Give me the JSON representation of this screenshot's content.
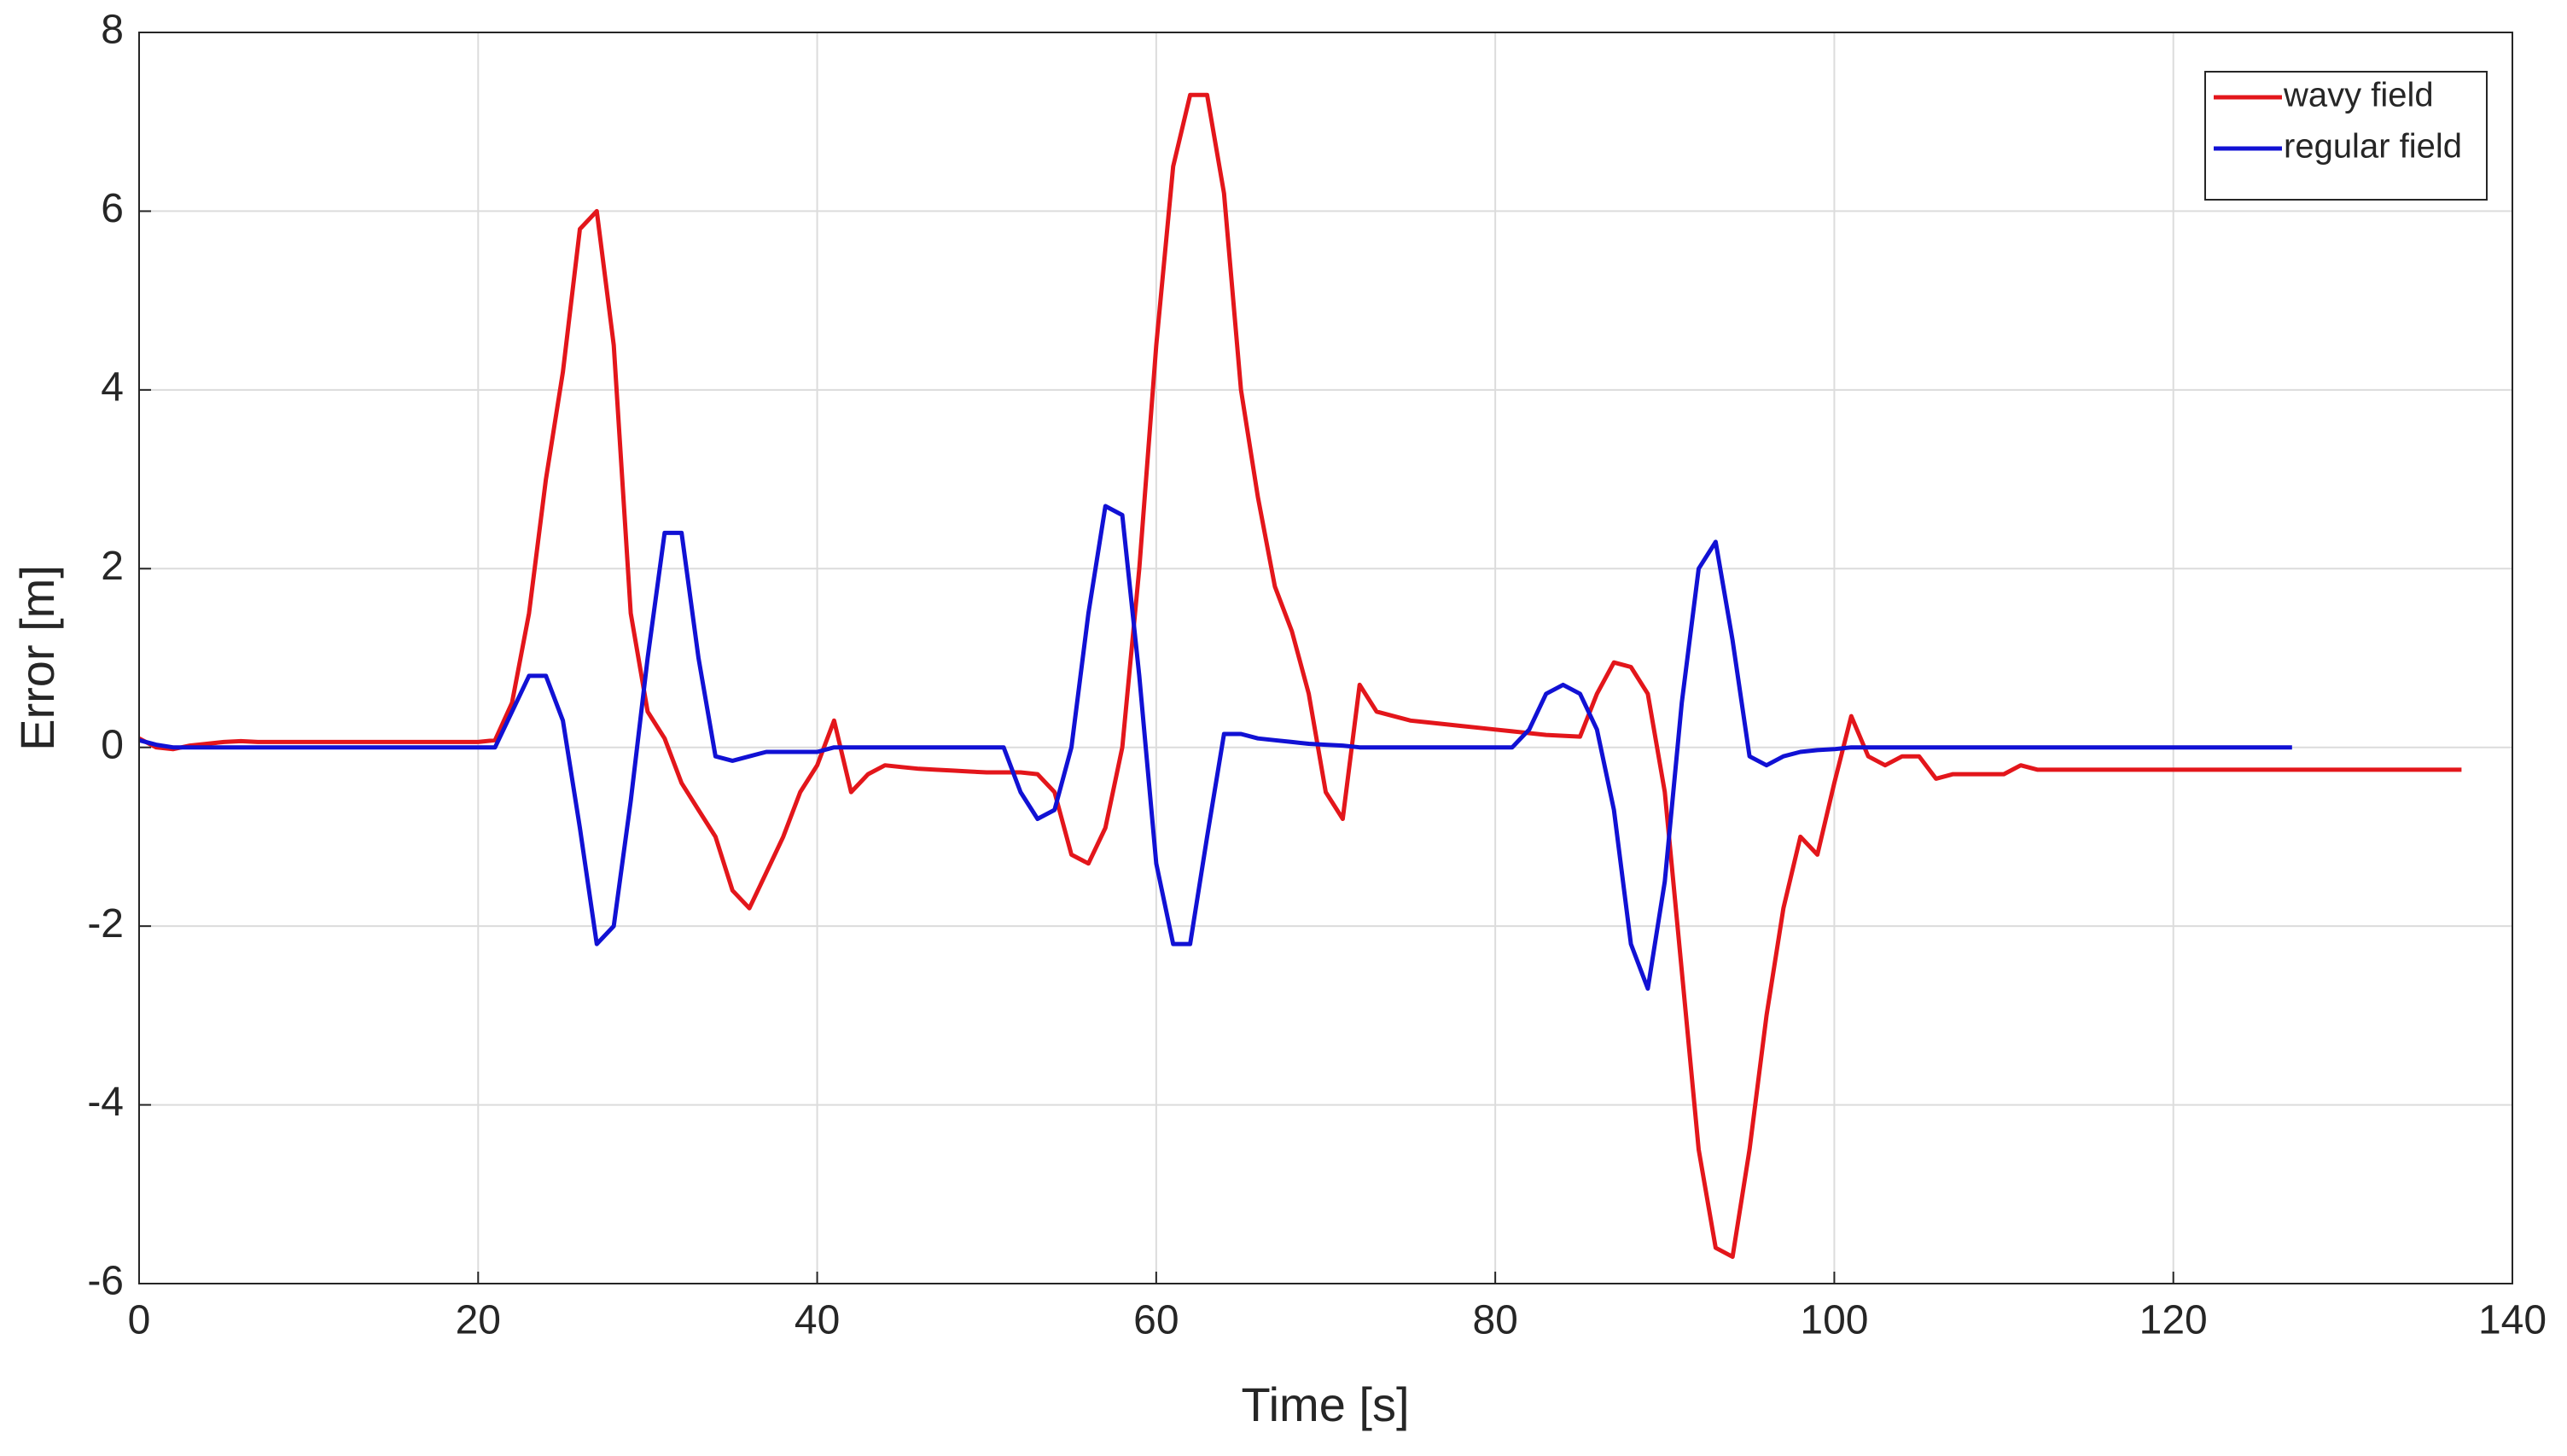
{
  "chart_data": {
    "type": "line",
    "xlabel": "Time [s]",
    "ylabel": "Error [m]",
    "x": [
      0,
      1,
      2,
      3,
      4,
      5,
      6,
      7,
      8,
      9,
      10,
      11,
      12,
      13,
      14,
      15,
      16,
      17,
      18,
      19,
      20,
      21,
      22,
      23,
      24,
      25,
      26,
      27,
      28,
      29,
      30,
      31,
      32,
      33,
      34,
      35,
      36,
      37,
      38,
      39,
      40,
      41,
      42,
      43,
      44,
      45,
      46,
      47,
      48,
      49,
      50,
      51,
      52,
      53,
      54,
      55,
      56,
      57,
      58,
      59,
      60,
      61,
      62,
      63,
      64,
      65,
      66,
      67,
      68,
      69,
      70,
      71,
      72,
      73,
      74,
      75,
      76,
      77,
      78,
      79,
      80,
      81,
      82,
      83,
      84,
      85,
      86,
      87,
      88,
      89,
      90,
      91,
      92,
      93,
      94,
      95,
      96,
      97,
      98,
      99,
      100,
      101,
      102,
      103,
      104,
      105,
      106,
      107,
      108,
      109,
      110,
      111,
      112,
      113,
      114,
      115,
      116,
      117,
      118,
      119,
      120,
      121,
      122,
      123,
      124,
      125,
      126,
      127,
      128,
      129,
      130,
      131,
      132,
      133,
      134,
      135,
      136,
      137
    ],
    "series": [
      {
        "name": "wavy field",
        "color": "#e3161b",
        "values": [
          0.1,
          0,
          -0.02,
          0.02,
          0.04,
          0.06,
          0.07,
          0.06,
          0.06,
          0.06,
          0.06,
          0.06,
          0.06,
          0.06,
          0.06,
          0.06,
          0.06,
          0.06,
          0.06,
          0.06,
          0.06,
          0.08,
          0.5,
          1.5,
          3,
          4.2,
          5.8,
          6,
          4.5,
          1.5,
          0.4,
          0.1,
          -0.4,
          -0.7,
          -1,
          -1.6,
          -1.8,
          -1.4,
          -1,
          -0.5,
          -0.2,
          0.3,
          -0.5,
          -0.3,
          -0.2,
          -0.22,
          -0.24,
          -0.25,
          -0.26,
          -0.27,
          -0.28,
          -0.28,
          -0.28,
          -0.3,
          -0.5,
          -1.2,
          -1.3,
          -0.9,
          0,
          2,
          4.5,
          6.5,
          7.3,
          7.3,
          6.2,
          4,
          2.8,
          1.8,
          1.3,
          0.6,
          -0.5,
          -0.8,
          0.7,
          0.4,
          0.35,
          0.3,
          0.28,
          0.26,
          0.24,
          0.22,
          0.2,
          0.18,
          0.16,
          0.14,
          0.13,
          0.12,
          0.6,
          0.95,
          0.9,
          0.6,
          -0.5,
          -2.5,
          -4.5,
          -5.6,
          -5.7,
          -4.5,
          -3,
          -1.8,
          -1,
          -1.2,
          -0.4,
          0.35,
          -0.1,
          -0.2,
          -0.1,
          -0.1,
          -0.35,
          -0.3,
          -0.3,
          -0.3,
          -0.3,
          -0.2,
          -0.25,
          -0.25,
          -0.25,
          -0.25,
          -0.25,
          -0.25,
          -0.25,
          -0.25,
          -0.25,
          -0.25,
          -0.25,
          -0.25,
          -0.25,
          -0.25,
          -0.25,
          -0.25,
          -0.25,
          -0.25,
          -0.25,
          -0.25,
          -0.25,
          -0.25,
          -0.25,
          -0.25,
          -0.25,
          -0.25
        ]
      },
      {
        "name": "regular field",
        "color": "#1111d4",
        "values": [
          0.08,
          0.03,
          0,
          0,
          0,
          0,
          0,
          0,
          0,
          0,
          0,
          0,
          0,
          0,
          0,
          0,
          0,
          0,
          0,
          0,
          0,
          0,
          0.4,
          0.8,
          0.8,
          0.3,
          -0.9,
          -2.2,
          -2,
          -0.6,
          1,
          2.4,
          2.4,
          1,
          -0.1,
          -0.15,
          -0.1,
          -0.05,
          -0.05,
          -0.05,
          -0.05,
          0,
          0,
          0,
          0,
          0,
          0,
          0,
          0,
          0,
          0,
          0,
          -0.5,
          -0.8,
          -0.7,
          0,
          1.5,
          2.7,
          2.6,
          0.8,
          -1.3,
          -2.2,
          -2.2,
          -1,
          0.15,
          0.15,
          0.1,
          0.08,
          0.06,
          0.04,
          0.03,
          0.02,
          0,
          0,
          0,
          0,
          0,
          0,
          0,
          0,
          0,
          0,
          0.2,
          0.6,
          0.7,
          0.6,
          0.2,
          -0.7,
          -2.2,
          -2.7,
          -1.5,
          0.5,
          2,
          2.3,
          1.2,
          -0.1,
          -0.2,
          -0.1,
          -0.05,
          -0.03,
          -0.02,
          0,
          0,
          0,
          0,
          0,
          0,
          0,
          0,
          0,
          0,
          0,
          0,
          0,
          0,
          0,
          0,
          0,
          0,
          0,
          0,
          0,
          0,
          0,
          0,
          0,
          0,
          0,
          null,
          null,
          null,
          null,
          null,
          null,
          null,
          null,
          null,
          null
        ]
      }
    ],
    "xlim": [
      0,
      140
    ],
    "xticks": [
      0,
      20,
      40,
      60,
      80,
      100,
      120,
      140
    ],
    "ylim": [
      -6,
      8
    ],
    "yticks": [
      -6,
      -4,
      -2,
      0,
      2,
      4,
      6,
      8
    ],
    "grid": true,
    "legend": "top-right"
  }
}
